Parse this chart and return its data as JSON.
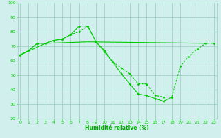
{
  "background_color": "#d0efed",
  "grid_color": "#99ccbb",
  "line_color": "#00cc00",
  "xlabel": "Humidité relative (%)",
  "xlabel_color": "#00aa00",
  "ylim": [
    20,
    100
  ],
  "xlim": [
    -0.3,
    23.3
  ],
  "yticks": [
    20,
    30,
    40,
    50,
    60,
    70,
    80,
    90,
    100
  ],
  "xticks": [
    0,
    1,
    2,
    3,
    4,
    5,
    6,
    7,
    8,
    9,
    10,
    11,
    12,
    13,
    14,
    15,
    16,
    17,
    18,
    19,
    20,
    21,
    22,
    23
  ],
  "series1_x": [
    0,
    1,
    2,
    3,
    4,
    5,
    6,
    7,
    8,
    9,
    10,
    11,
    12,
    13,
    14,
    15,
    16,
    17,
    18
  ],
  "series1_y": [
    64,
    67,
    72,
    72,
    74,
    75,
    78,
    84,
    84,
    73,
    67,
    59,
    51,
    44,
    37,
    36,
    34,
    32,
    35
  ],
  "series2_x": [
    0,
    1,
    2,
    3,
    4,
    5,
    6,
    7,
    8,
    9,
    10,
    11,
    12,
    13,
    14,
    15,
    16,
    17,
    18,
    19,
    20,
    21,
    22,
    23
  ],
  "series2_y": [
    64,
    67,
    72,
    72,
    74,
    75,
    78,
    80,
    84,
    73,
    66,
    59,
    55,
    51,
    44,
    44,
    36,
    35,
    35,
    56,
    63,
    68,
    72,
    72
  ],
  "series3_x": [
    0,
    3,
    8,
    22
  ],
  "series3_y": [
    64,
    72,
    73,
    72
  ]
}
